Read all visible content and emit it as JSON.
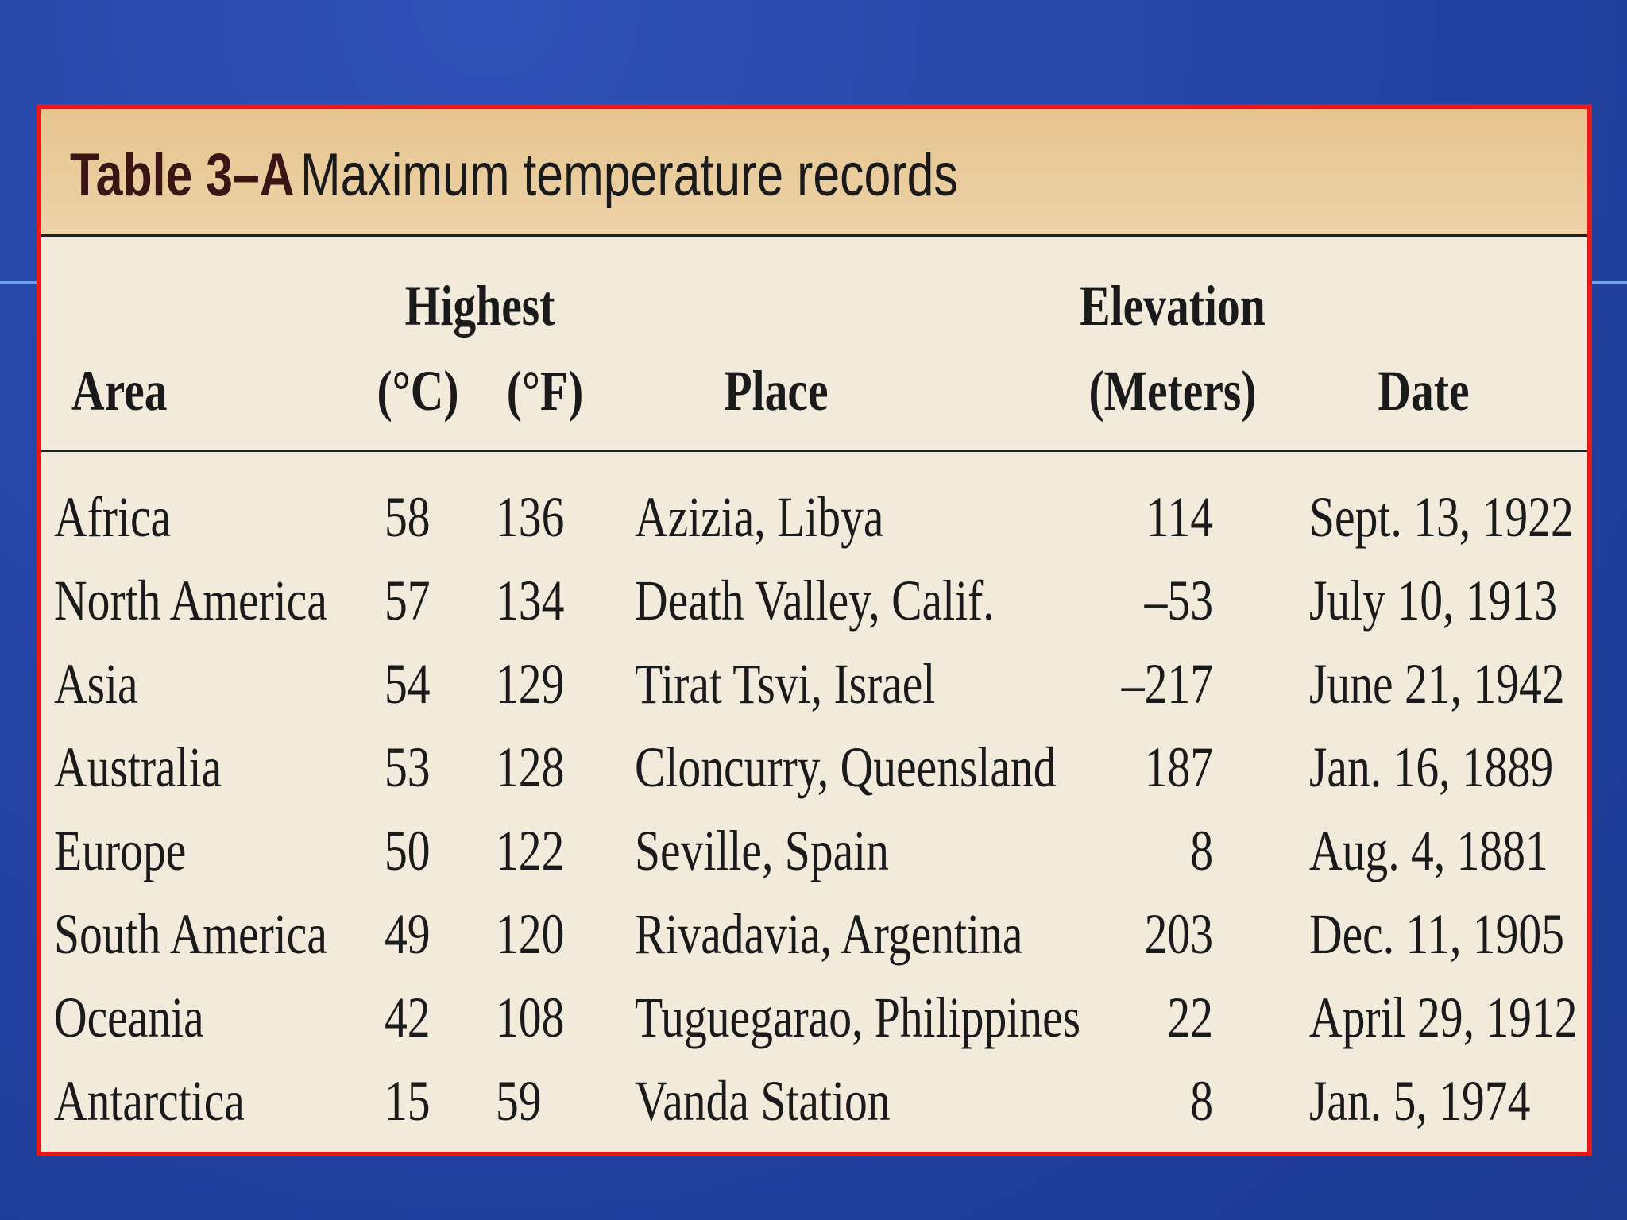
{
  "table": {
    "label": "Table 3–A",
    "title": "Maximum temperature records",
    "headers": {
      "area": "Area",
      "highest": "Highest",
      "celsius": "(°C)",
      "fahrenheit": "(°F)",
      "place": "Place",
      "elevation": "Elevation",
      "meters": "(Meters)",
      "date": "Date"
    },
    "rows": [
      [
        "Africa",
        "58",
        "136",
        "Azizia, Libya",
        "114",
        "Sept. 13, 1922"
      ],
      [
        "North America",
        "57",
        "134",
        "Death Valley, Calif.",
        "–53",
        "July 10, 1913"
      ],
      [
        "Asia",
        "54",
        "129",
        "Tirat Tsvi, Israel",
        "–217",
        "June 21, 1942"
      ],
      [
        "Australia",
        "53",
        "128",
        "Cloncurry, Queensland",
        "187",
        "Jan. 16, 1889"
      ],
      [
        "Europe",
        "50",
        "122",
        "Seville, Spain",
        "8",
        "Aug. 4, 1881"
      ],
      [
        "South America",
        "49",
        "120",
        "Rivadavia, Argentina",
        "203",
        "Dec. 11, 1905"
      ],
      [
        "Oceania",
        "42",
        "108",
        "Tuguegarao, Philippines",
        "22",
        "April 29, 1912"
      ],
      [
        "Antarctica",
        "15",
        "59",
        "Vanda Station",
        "8",
        "Jan. 5, 1974"
      ]
    ]
  }
}
